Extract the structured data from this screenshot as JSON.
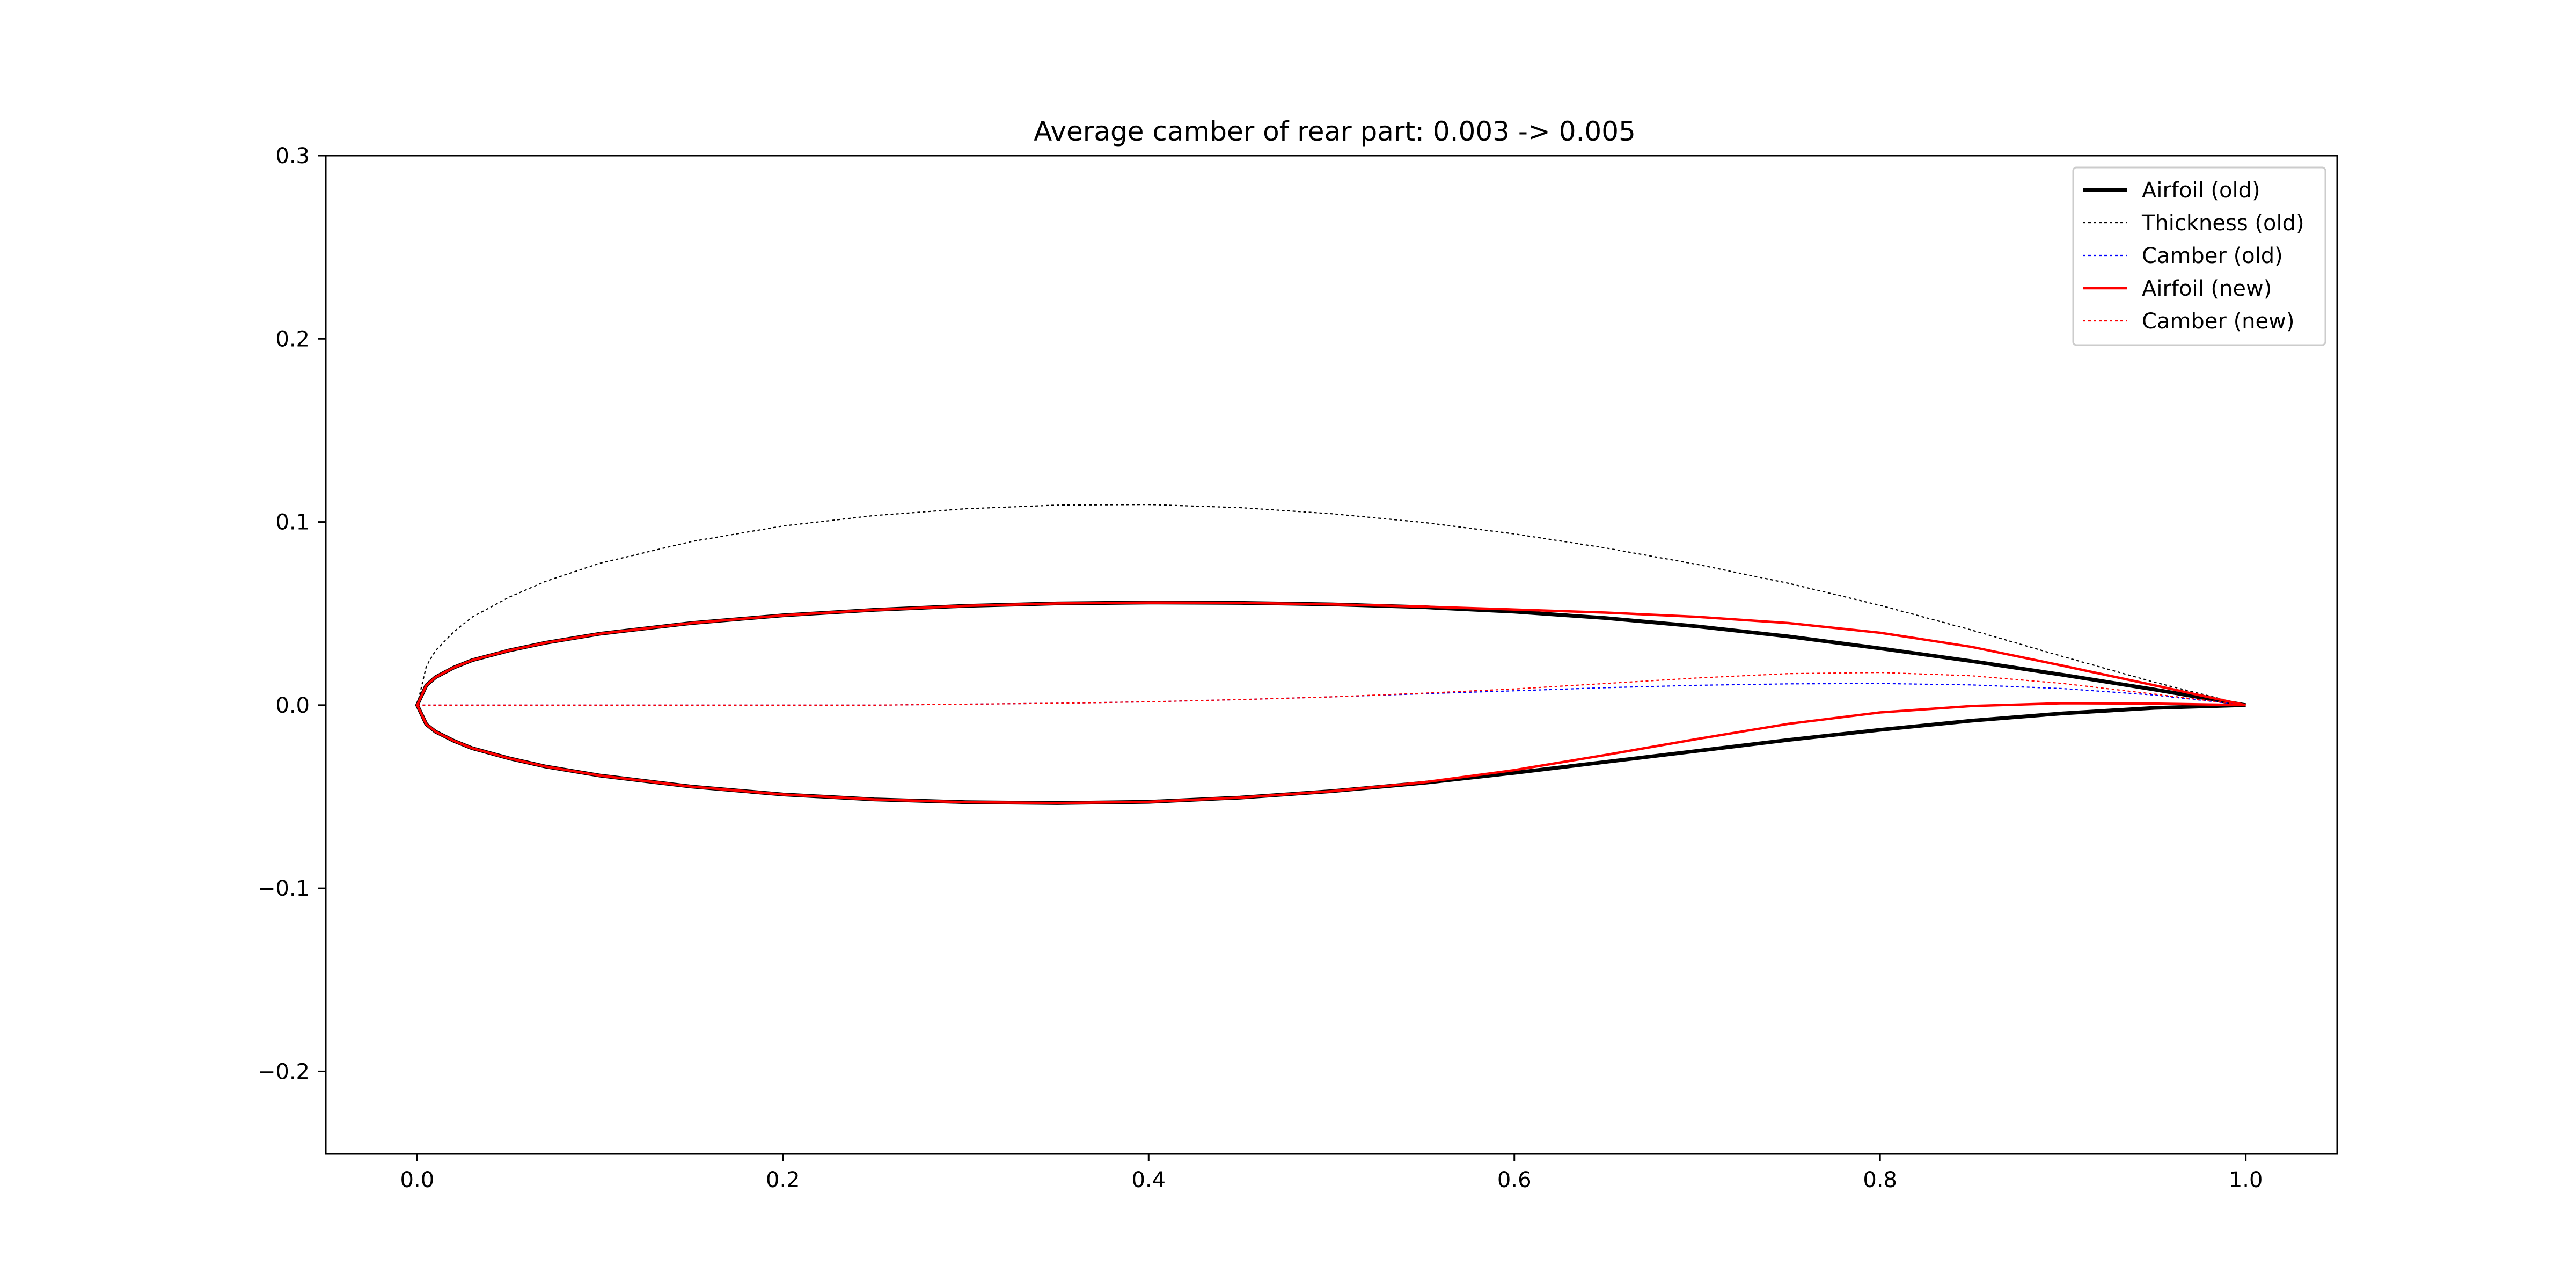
{
  "chart_data": {
    "type": "line",
    "title": "Average camber of rear part: 0.003 -> 0.005",
    "xlabel": "",
    "ylabel": "",
    "xlim": [
      -0.05,
      1.05
    ],
    "ylim": [
      -0.245,
      0.3
    ],
    "x_ticks": [
      0.0,
      0.2,
      0.4,
      0.6,
      0.8,
      1.0
    ],
    "x_tick_labels": [
      "0.0",
      "0.2",
      "0.4",
      "0.6",
      "0.8",
      "1.0"
    ],
    "y_ticks": [
      -0.2,
      -0.1,
      0.0,
      0.1,
      0.2,
      0.3
    ],
    "y_tick_labels": [
      "−0.2",
      "−0.1",
      "0.0",
      "0.1",
      "0.2",
      "0.3"
    ],
    "grid": false,
    "legend": {
      "position": "top-right",
      "entries": [
        "Airfoil (old)",
        "Thickness (old)",
        "Camber (old)",
        "Airfoil (new)",
        "Camber (new)"
      ]
    },
    "series": [
      {
        "name": "Airfoil (old)",
        "color": "#000000",
        "style": "solid",
        "x": [
          1.0,
          0.95,
          0.9,
          0.85,
          0.8,
          0.75,
          0.7,
          0.65,
          0.6,
          0.55,
          0.5,
          0.45,
          0.4,
          0.35,
          0.3,
          0.25,
          0.2,
          0.15,
          0.1,
          0.07,
          0.05,
          0.03,
          0.02,
          0.01,
          0.005,
          0.0,
          0.005,
          0.01,
          0.02,
          0.03,
          0.05,
          0.07,
          0.1,
          0.15,
          0.2,
          0.25,
          0.3,
          0.35,
          0.4,
          0.45,
          0.5,
          0.55,
          0.6,
          0.65,
          0.7,
          0.75,
          0.8,
          0.85,
          0.9,
          0.95,
          1.0
        ],
        "y": [
          0.0,
          0.0085,
          0.0165,
          0.024,
          0.031,
          0.0375,
          0.043,
          0.0475,
          0.051,
          0.0535,
          0.055,
          0.0558,
          0.056,
          0.0555,
          0.0542,
          0.052,
          0.049,
          0.0448,
          0.039,
          0.034,
          0.0298,
          0.0245,
          0.0205,
          0.0152,
          0.0108,
          0.0,
          -0.0105,
          -0.0145,
          -0.0195,
          -0.0235,
          -0.029,
          -0.0335,
          -0.0385,
          -0.0445,
          -0.0488,
          -0.0515,
          -0.053,
          -0.0535,
          -0.0528,
          -0.0505,
          -0.047,
          -0.0425,
          -0.037,
          -0.031,
          -0.025,
          -0.019,
          -0.0135,
          -0.0085,
          -0.0045,
          -0.0015,
          0.0
        ]
      },
      {
        "name": "Thickness (old)",
        "color": "#000000",
        "style": "dotted",
        "x": [
          0.0,
          0.005,
          0.01,
          0.02,
          0.03,
          0.05,
          0.07,
          0.1,
          0.15,
          0.2,
          0.25,
          0.3,
          0.35,
          0.4,
          0.45,
          0.5,
          0.55,
          0.6,
          0.65,
          0.7,
          0.75,
          0.8,
          0.85,
          0.9,
          0.95,
          1.0
        ],
        "y": [
          0.0,
          0.0213,
          0.0297,
          0.04,
          0.048,
          0.0588,
          0.0675,
          0.0775,
          0.0893,
          0.0978,
          0.1035,
          0.1072,
          0.1092,
          0.1095,
          0.1078,
          0.1045,
          0.0998,
          0.0935,
          0.0858,
          0.0768,
          0.0665,
          0.0545,
          0.041,
          0.0265,
          0.0125,
          0.0
        ]
      },
      {
        "name": "Camber (old)",
        "color": "#0000ff",
        "style": "dotted",
        "x": [
          0.0,
          0.05,
          0.1,
          0.15,
          0.2,
          0.25,
          0.3,
          0.35,
          0.4,
          0.45,
          0.5,
          0.55,
          0.6,
          0.65,
          0.7,
          0.75,
          0.8,
          0.85,
          0.9,
          0.95,
          1.0
        ],
        "y": [
          0.0,
          0.0,
          0.0,
          0.0,
          0.0,
          0.0,
          0.0005,
          0.001,
          0.0018,
          0.003,
          0.0045,
          0.0062,
          0.0078,
          0.0095,
          0.0108,
          0.0116,
          0.0118,
          0.011,
          0.009,
          0.0055,
          0.0
        ]
      },
      {
        "name": "Airfoil (new)",
        "color": "#ff0000",
        "style": "solid",
        "x": [
          1.0,
          0.95,
          0.9,
          0.85,
          0.8,
          0.75,
          0.7,
          0.65,
          0.6,
          0.55,
          0.5,
          0.45,
          0.4,
          0.35,
          0.3,
          0.25,
          0.2,
          0.15,
          0.1,
          0.07,
          0.05,
          0.03,
          0.02,
          0.01,
          0.005,
          0.0,
          0.005,
          0.01,
          0.02,
          0.03,
          0.05,
          0.07,
          0.1,
          0.15,
          0.2,
          0.25,
          0.3,
          0.35,
          0.4,
          0.45,
          0.5,
          0.55,
          0.6,
          0.65,
          0.7,
          0.75,
          0.8,
          0.85,
          0.9,
          0.95,
          1.0
        ],
        "y": [
          0.0,
          0.0108,
          0.0215,
          0.0318,
          0.0395,
          0.0448,
          0.0482,
          0.0505,
          0.0522,
          0.0538,
          0.055,
          0.0558,
          0.056,
          0.0555,
          0.0542,
          0.052,
          0.049,
          0.0448,
          0.039,
          0.034,
          0.0298,
          0.0245,
          0.0205,
          0.0152,
          0.0108,
          0.0,
          -0.0105,
          -0.0145,
          -0.0195,
          -0.0235,
          -0.029,
          -0.0335,
          -0.0385,
          -0.0445,
          -0.0488,
          -0.0515,
          -0.053,
          -0.0535,
          -0.0528,
          -0.0505,
          -0.047,
          -0.0422,
          -0.0355,
          -0.0272,
          -0.0185,
          -0.0102,
          -0.004,
          -0.0005,
          0.001,
          0.0008,
          0.0
        ]
      },
      {
        "name": "Camber (new)",
        "color": "#ff0000",
        "style": "dotted",
        "x": [
          0.0,
          0.05,
          0.1,
          0.15,
          0.2,
          0.25,
          0.3,
          0.35,
          0.4,
          0.45,
          0.5,
          0.55,
          0.6,
          0.65,
          0.7,
          0.75,
          0.8,
          0.85,
          0.9,
          0.95,
          1.0
        ],
        "y": [
          0.0,
          0.0,
          0.0,
          0.0,
          0.0,
          0.0,
          0.0005,
          0.001,
          0.0018,
          0.003,
          0.0045,
          0.0065,
          0.0088,
          0.0118,
          0.0148,
          0.0172,
          0.0178,
          0.016,
          0.0118,
          0.006,
          0.0
        ]
      }
    ]
  }
}
